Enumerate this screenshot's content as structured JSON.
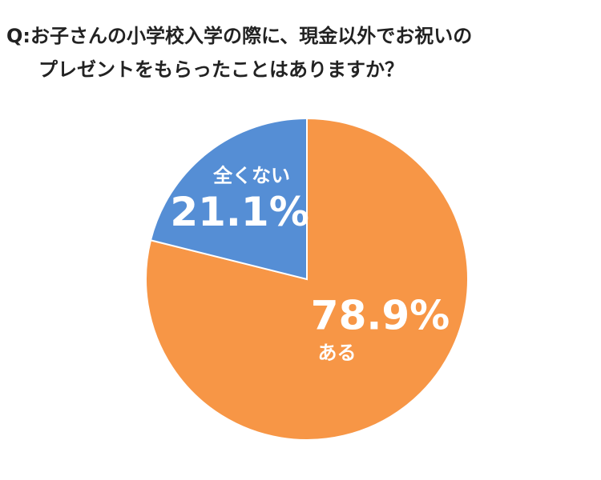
{
  "chart_data": {
    "type": "pie",
    "title": [
      "Q:お子さんの小学校入学の際に、現金以外でお祝いの",
      "プレゼントをもらったことはありますか？"
    ],
    "categories": [
      "ある",
      "全くない"
    ],
    "values": [
      78.9,
      21.1
    ],
    "value_labels": [
      "78.9%",
      "21.1%"
    ],
    "colors": [
      "#F79646",
      "#558ED5"
    ]
  }
}
